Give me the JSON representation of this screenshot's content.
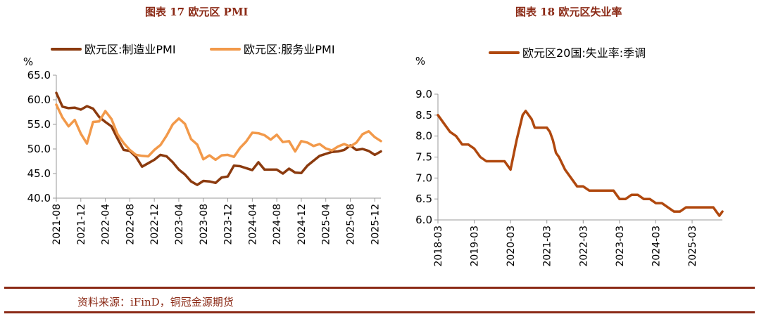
{
  "left_figure_title": "图表 17 欧元区 PMI",
  "right_figure_title": "图表 18 欧元区失业率",
  "source_note": "资料来源：iFinD，铜冠金源期货",
  "colors": {
    "accent": "#8b2a16",
    "manufacturing": "#8b3a0e",
    "services": "#f2994a",
    "unemployment": "#b0480e"
  },
  "chart_data": [
    {
      "type": "line",
      "unit_label": "%",
      "ylim": [
        40,
        65
      ],
      "yticks": [
        "40.0",
        "45.0",
        "50.0",
        "55.0",
        "60.0",
        "65.0"
      ],
      "xlim": [
        "2021-08",
        "2026-01"
      ],
      "xticks": [
        "2021-08",
        "2021-12",
        "2022-04",
        "2022-08",
        "2022-12",
        "2023-04",
        "2023-08",
        "2023-12",
        "2024-04",
        "2024-08",
        "2024-12",
        "2025-04",
        "2025-08",
        "2025-12"
      ],
      "legend_position": "top",
      "grid": false,
      "series": [
        {
          "name": "欧元区:制造业PMI",
          "color": "manufacturing",
          "x": [
            "2021-08",
            "2021-09",
            "2021-10",
            "2021-11",
            "2021-12",
            "2022-01",
            "2022-02",
            "2022-03",
            "2022-04",
            "2022-05",
            "2022-06",
            "2022-07",
            "2022-08",
            "2022-09",
            "2022-10",
            "2022-11",
            "2022-12",
            "2023-01",
            "2023-02",
            "2023-03",
            "2023-04",
            "2023-05",
            "2023-06",
            "2023-07",
            "2023-08",
            "2023-09",
            "2023-10",
            "2023-11",
            "2023-12",
            "2024-01",
            "2024-02",
            "2024-03",
            "2024-04",
            "2024-05",
            "2024-06",
            "2024-07",
            "2024-08",
            "2024-09",
            "2024-10",
            "2024-11",
            "2024-12",
            "2025-01",
            "2025-02",
            "2025-03",
            "2025-04",
            "2025-05",
            "2025-06",
            "2025-07",
            "2025-08",
            "2025-09",
            "2025-10",
            "2025-11",
            "2025-12",
            "2026-01"
          ],
          "values": [
            61.4,
            58.6,
            58.3,
            58.4,
            58.0,
            58.7,
            58.2,
            56.5,
            55.5,
            54.6,
            52.1,
            49.8,
            49.6,
            48.4,
            46.4,
            47.1,
            47.8,
            48.8,
            48.5,
            47.3,
            45.8,
            44.8,
            43.4,
            42.7,
            43.5,
            43.4,
            43.1,
            44.2,
            44.4,
            46.6,
            46.5,
            46.1,
            45.7,
            47.3,
            45.8,
            45.8,
            45.8,
            45.0,
            46.0,
            45.2,
            45.1,
            46.6,
            47.6,
            48.6,
            49.0,
            49.4,
            49.5,
            49.8,
            50.7,
            49.8,
            50.0,
            49.6,
            48.8,
            49.5
          ]
        },
        {
          "name": "欧元区:服务业PMI",
          "color": "services",
          "x": [
            "2021-08",
            "2021-09",
            "2021-10",
            "2021-11",
            "2021-12",
            "2022-01",
            "2022-02",
            "2022-03",
            "2022-04",
            "2022-05",
            "2022-06",
            "2022-07",
            "2022-08",
            "2022-09",
            "2022-10",
            "2022-11",
            "2022-12",
            "2023-01",
            "2023-02",
            "2023-03",
            "2023-04",
            "2023-05",
            "2023-06",
            "2023-07",
            "2023-08",
            "2023-09",
            "2023-10",
            "2023-11",
            "2023-12",
            "2024-01",
            "2024-02",
            "2024-03",
            "2024-04",
            "2024-05",
            "2024-06",
            "2024-07",
            "2024-08",
            "2024-09",
            "2024-10",
            "2024-11",
            "2024-12",
            "2025-01",
            "2025-02",
            "2025-03",
            "2025-04",
            "2025-05",
            "2025-06",
            "2025-07",
            "2025-08",
            "2025-09",
            "2025-10",
            "2025-11",
            "2025-12",
            "2026-01"
          ],
          "values": [
            59.0,
            56.4,
            54.6,
            55.9,
            53.1,
            51.1,
            55.5,
            55.6,
            57.7,
            56.1,
            53.0,
            51.2,
            49.8,
            48.8,
            48.6,
            48.5,
            49.8,
            50.8,
            52.7,
            55.0,
            56.2,
            55.1,
            52.0,
            50.9,
            47.9,
            48.7,
            47.8,
            48.7,
            48.8,
            48.4,
            50.2,
            51.5,
            53.3,
            53.2,
            52.8,
            51.9,
            52.9,
            51.4,
            51.6,
            49.5,
            51.6,
            51.3,
            50.6,
            51.0,
            50.1,
            49.7,
            50.5,
            51.0,
            50.5,
            51.3,
            53.0,
            53.6,
            52.4,
            51.6
          ]
        }
      ]
    },
    {
      "type": "line",
      "unit_label": "%",
      "ylim": [
        6.0,
        9.0
      ],
      "yticks": [
        "6.0",
        "6.5",
        "7.0",
        "7.5",
        "8.0",
        "8.5",
        "9.0"
      ],
      "xlim": [
        "2018-03",
        "2026-01"
      ],
      "xticks": [
        "2018-03",
        "2019-03",
        "2020-03",
        "2021-03",
        "2022-03",
        "2023-03",
        "2024-03",
        "2025-03"
      ],
      "legend_position": "top",
      "grid": false,
      "series": [
        {
          "name": "欧元区20国:失业率:季调",
          "color": "unemployment",
          "x": [
            "2018-03",
            "2018-05",
            "2018-07",
            "2018-09",
            "2018-11",
            "2019-01",
            "2019-03",
            "2019-05",
            "2019-07",
            "2019-09",
            "2019-11",
            "2020-01",
            "2020-03",
            "2020-05",
            "2020-07",
            "2020-08",
            "2020-09",
            "2020-10",
            "2020-11",
            "2020-12",
            "2021-01",
            "2021-02",
            "2021-03",
            "2021-04",
            "2021-05",
            "2021-06",
            "2021-07",
            "2021-09",
            "2021-11",
            "2022-01",
            "2022-03",
            "2022-05",
            "2022-07",
            "2022-09",
            "2022-11",
            "2023-01",
            "2023-03",
            "2023-05",
            "2023-07",
            "2023-09",
            "2023-11",
            "2024-01",
            "2024-03",
            "2024-05",
            "2024-07",
            "2024-09",
            "2024-11",
            "2025-01",
            "2025-03",
            "2025-05",
            "2025-07",
            "2025-09",
            "2025-10",
            "2025-11",
            "2025-12",
            "2026-01"
          ],
          "values": [
            8.5,
            8.3,
            8.1,
            8.0,
            7.8,
            7.8,
            7.7,
            7.5,
            7.4,
            7.4,
            7.4,
            7.4,
            7.2,
            7.9,
            8.5,
            8.6,
            8.5,
            8.4,
            8.2,
            8.2,
            8.2,
            8.2,
            8.2,
            8.1,
            7.9,
            7.6,
            7.5,
            7.2,
            7.0,
            6.8,
            6.8,
            6.7,
            6.7,
            6.7,
            6.7,
            6.7,
            6.5,
            6.5,
            6.6,
            6.6,
            6.5,
            6.5,
            6.4,
            6.4,
            6.3,
            6.2,
            6.2,
            6.3,
            6.3,
            6.3,
            6.3,
            6.3,
            6.3,
            6.2,
            6.1,
            6.2
          ]
        }
      ]
    }
  ]
}
